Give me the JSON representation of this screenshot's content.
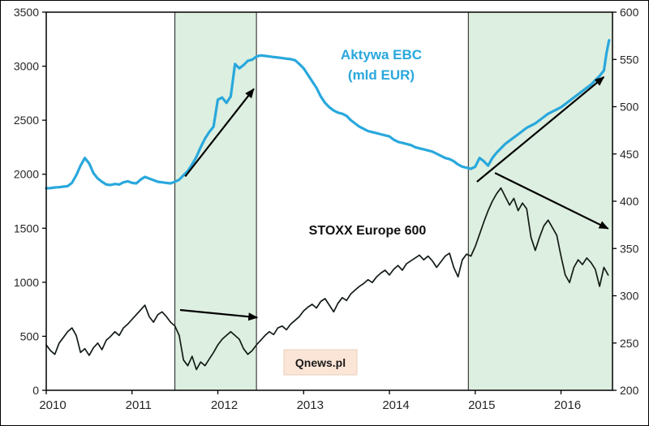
{
  "chart_data": {
    "type": "line",
    "title": "",
    "legend_position": "none",
    "grid": false,
    "plot_bg": "#ffffff",
    "x_axis": {
      "min": 2010,
      "max": 2016.6,
      "tick_years": [
        2010,
        2011,
        2012,
        2013,
        2014,
        2015,
        2016
      ],
      "tick_labels": [
        "2010",
        "2011",
        "2012",
        "2013",
        "2014",
        "2015",
        "2016"
      ]
    },
    "left_axis": {
      "min": 0,
      "max": 3500,
      "step": 500,
      "ticks": [
        "0",
        "500",
        "1000",
        "1500",
        "2000",
        "2500",
        "3000",
        "3500"
      ]
    },
    "right_axis": {
      "min": 200,
      "max": 600,
      "step": 50,
      "ticks": [
        "200",
        "250",
        "300",
        "350",
        "400",
        "450",
        "500",
        "550",
        "600"
      ]
    },
    "band_style": {
      "fill": "#ddefe0",
      "stroke": "#1a1a1a"
    },
    "bands": [
      {
        "x0": 2011.5,
        "x1": 2012.45
      },
      {
        "x0": 2014.92,
        "x1": 2016.6
      }
    ],
    "arrows": [
      {
        "axis": "left",
        "from": [
          2011.62,
          1980
        ],
        "to": [
          2012.42,
          2790
        ]
      },
      {
        "axis": "right",
        "from": [
          2011.56,
          285
        ],
        "to": [
          2012.46,
          277
        ]
      },
      {
        "axis": "left",
        "from": [
          2015.02,
          1930
        ],
        "to": [
          2016.5,
          2900
        ]
      },
      {
        "axis": "right",
        "from": [
          2015.23,
          430
        ],
        "to": [
          2016.55,
          371
        ]
      }
    ],
    "annotations": {
      "ecb_label_line1": "Aktywa EBC",
      "ecb_label_line2": "(mld EUR)",
      "stoxx_label": "STOXX Europe 600",
      "watermark": "Qnews.pl"
    },
    "series": [
      {
        "id": "ecb",
        "name": "Aktywa EBC (mld EUR)",
        "axis": "left",
        "color": "#29a8dc",
        "width": 3.2,
        "points": [
          [
            2010.0,
            1870
          ],
          [
            2010.05,
            1872
          ],
          [
            2010.1,
            1878
          ],
          [
            2010.15,
            1880
          ],
          [
            2010.2,
            1885
          ],
          [
            2010.25,
            1890
          ],
          [
            2010.3,
            1920
          ],
          [
            2010.35,
            1990
          ],
          [
            2010.4,
            2080
          ],
          [
            2010.45,
            2150
          ],
          [
            2010.5,
            2100
          ],
          [
            2010.55,
            2010
          ],
          [
            2010.6,
            1960
          ],
          [
            2010.65,
            1930
          ],
          [
            2010.7,
            1905
          ],
          [
            2010.75,
            1900
          ],
          [
            2010.8,
            1910
          ],
          [
            2010.85,
            1905
          ],
          [
            2010.9,
            1925
          ],
          [
            2010.95,
            1935
          ],
          [
            2011.0,
            1920
          ],
          [
            2011.05,
            1915
          ],
          [
            2011.1,
            1950
          ],
          [
            2011.15,
            1975
          ],
          [
            2011.2,
            1960
          ],
          [
            2011.25,
            1945
          ],
          [
            2011.3,
            1930
          ],
          [
            2011.35,
            1925
          ],
          [
            2011.4,
            1920
          ],
          [
            2011.45,
            1915
          ],
          [
            2011.5,
            1930
          ],
          [
            2011.55,
            1950
          ],
          [
            2011.6,
            1990
          ],
          [
            2011.65,
            2030
          ],
          [
            2011.7,
            2090
          ],
          [
            2011.75,
            2160
          ],
          [
            2011.8,
            2250
          ],
          [
            2011.85,
            2330
          ],
          [
            2011.9,
            2390
          ],
          [
            2011.95,
            2440
          ],
          [
            2012.0,
            2690
          ],
          [
            2012.05,
            2710
          ],
          [
            2012.1,
            2660
          ],
          [
            2012.15,
            2720
          ],
          [
            2012.2,
            3020
          ],
          [
            2012.25,
            2980
          ],
          [
            2012.3,
            3010
          ],
          [
            2012.35,
            3050
          ],
          [
            2012.4,
            3060
          ],
          [
            2012.45,
            3090
          ],
          [
            2012.5,
            3100
          ],
          [
            2012.55,
            3095
          ],
          [
            2012.6,
            3090
          ],
          [
            2012.65,
            3085
          ],
          [
            2012.7,
            3080
          ],
          [
            2012.75,
            3075
          ],
          [
            2012.8,
            3070
          ],
          [
            2012.85,
            3065
          ],
          [
            2012.9,
            3055
          ],
          [
            2012.95,
            3020
          ],
          [
            2013.0,
            2980
          ],
          [
            2013.05,
            2920
          ],
          [
            2013.1,
            2860
          ],
          [
            2013.15,
            2800
          ],
          [
            2013.2,
            2720
          ],
          [
            2013.25,
            2660
          ],
          [
            2013.3,
            2620
          ],
          [
            2013.35,
            2590
          ],
          [
            2013.4,
            2570
          ],
          [
            2013.45,
            2560
          ],
          [
            2013.5,
            2540
          ],
          [
            2013.55,
            2500
          ],
          [
            2013.6,
            2470
          ],
          [
            2013.65,
            2440
          ],
          [
            2013.7,
            2420
          ],
          [
            2013.75,
            2400
          ],
          [
            2013.8,
            2390
          ],
          [
            2013.85,
            2380
          ],
          [
            2013.9,
            2370
          ],
          [
            2013.95,
            2360
          ],
          [
            2014.0,
            2350
          ],
          [
            2014.05,
            2320
          ],
          [
            2014.1,
            2300
          ],
          [
            2014.15,
            2290
          ],
          [
            2014.2,
            2280
          ],
          [
            2014.25,
            2270
          ],
          [
            2014.3,
            2250
          ],
          [
            2014.35,
            2240
          ],
          [
            2014.4,
            2230
          ],
          [
            2014.45,
            2220
          ],
          [
            2014.5,
            2210
          ],
          [
            2014.55,
            2190
          ],
          [
            2014.6,
            2170
          ],
          [
            2014.65,
            2150
          ],
          [
            2014.7,
            2140
          ],
          [
            2014.75,
            2120
          ],
          [
            2014.8,
            2090
          ],
          [
            2014.85,
            2070
          ],
          [
            2014.9,
            2060
          ],
          [
            2014.95,
            2050
          ],
          [
            2015.0,
            2070
          ],
          [
            2015.05,
            2150
          ],
          [
            2015.1,
            2120
          ],
          [
            2015.15,
            2080
          ],
          [
            2015.2,
            2150
          ],
          [
            2015.25,
            2200
          ],
          [
            2015.3,
            2240
          ],
          [
            2015.35,
            2280
          ],
          [
            2015.4,
            2310
          ],
          [
            2015.45,
            2340
          ],
          [
            2015.5,
            2370
          ],
          [
            2015.55,
            2400
          ],
          [
            2015.6,
            2430
          ],
          [
            2015.65,
            2450
          ],
          [
            2015.7,
            2470
          ],
          [
            2015.75,
            2500
          ],
          [
            2015.8,
            2530
          ],
          [
            2015.85,
            2560
          ],
          [
            2015.9,
            2580
          ],
          [
            2015.95,
            2600
          ],
          [
            2016.0,
            2620
          ],
          [
            2016.05,
            2650
          ],
          [
            2016.1,
            2680
          ],
          [
            2016.15,
            2710
          ],
          [
            2016.2,
            2740
          ],
          [
            2016.25,
            2770
          ],
          [
            2016.3,
            2800
          ],
          [
            2016.35,
            2830
          ],
          [
            2016.4,
            2870
          ],
          [
            2016.45,
            2910
          ],
          [
            2016.5,
            2960
          ],
          [
            2016.53,
            3120
          ],
          [
            2016.56,
            3240
          ]
        ]
      },
      {
        "id": "stoxx",
        "name": "STOXX Europe 600",
        "axis": "right",
        "color": "#121b16",
        "width": 1.7,
        "points": [
          [
            2010.0,
            248
          ],
          [
            2010.05,
            242
          ],
          [
            2010.1,
            238
          ],
          [
            2010.15,
            250
          ],
          [
            2010.2,
            256
          ],
          [
            2010.25,
            262
          ],
          [
            2010.3,
            266
          ],
          [
            2010.35,
            258
          ],
          [
            2010.4,
            240
          ],
          [
            2010.45,
            244
          ],
          [
            2010.5,
            237
          ],
          [
            2010.55,
            245
          ],
          [
            2010.6,
            250
          ],
          [
            2010.65,
            243
          ],
          [
            2010.7,
            253
          ],
          [
            2010.75,
            257
          ],
          [
            2010.8,
            262
          ],
          [
            2010.85,
            258
          ],
          [
            2010.9,
            266
          ],
          [
            2010.95,
            270
          ],
          [
            2011.0,
            275
          ],
          [
            2011.05,
            280
          ],
          [
            2011.1,
            285
          ],
          [
            2011.15,
            290
          ],
          [
            2011.2,
            278
          ],
          [
            2011.25,
            272
          ],
          [
            2011.3,
            280
          ],
          [
            2011.35,
            283
          ],
          [
            2011.4,
            278
          ],
          [
            2011.45,
            272
          ],
          [
            2011.5,
            268
          ],
          [
            2011.55,
            258
          ],
          [
            2011.6,
            232
          ],
          [
            2011.65,
            226
          ],
          [
            2011.7,
            236
          ],
          [
            2011.75,
            222
          ],
          [
            2011.8,
            230
          ],
          [
            2011.85,
            226
          ],
          [
            2011.9,
            233
          ],
          [
            2011.95,
            240
          ],
          [
            2012.0,
            248
          ],
          [
            2012.05,
            254
          ],
          [
            2012.1,
            258
          ],
          [
            2012.15,
            262
          ],
          [
            2012.2,
            258
          ],
          [
            2012.25,
            254
          ],
          [
            2012.3,
            244
          ],
          [
            2012.35,
            238
          ],
          [
            2012.4,
            242
          ],
          [
            2012.45,
            248
          ],
          [
            2012.5,
            253
          ],
          [
            2012.55,
            258
          ],
          [
            2012.6,
            262
          ],
          [
            2012.65,
            259
          ],
          [
            2012.7,
            266
          ],
          [
            2012.75,
            268
          ],
          [
            2012.8,
            264
          ],
          [
            2012.85,
            270
          ],
          [
            2012.9,
            274
          ],
          [
            2012.95,
            278
          ],
          [
            2013.0,
            284
          ],
          [
            2013.05,
            288
          ],
          [
            2013.1,
            291
          ],
          [
            2013.15,
            287
          ],
          [
            2013.2,
            294
          ],
          [
            2013.25,
            297
          ],
          [
            2013.3,
            290
          ],
          [
            2013.35,
            283
          ],
          [
            2013.4,
            292
          ],
          [
            2013.45,
            298
          ],
          [
            2013.5,
            295
          ],
          [
            2013.55,
            302
          ],
          [
            2013.6,
            306
          ],
          [
            2013.65,
            310
          ],
          [
            2013.7,
            313
          ],
          [
            2013.75,
            317
          ],
          [
            2013.8,
            314
          ],
          [
            2013.85,
            320
          ],
          [
            2013.9,
            324
          ],
          [
            2013.95,
            327
          ],
          [
            2014.0,
            322
          ],
          [
            2014.05,
            328
          ],
          [
            2014.1,
            332
          ],
          [
            2014.15,
            327
          ],
          [
            2014.2,
            334
          ],
          [
            2014.25,
            337
          ],
          [
            2014.3,
            340
          ],
          [
            2014.35,
            343
          ],
          [
            2014.4,
            338
          ],
          [
            2014.45,
            342
          ],
          [
            2014.5,
            337
          ],
          [
            2014.55,
            330
          ],
          [
            2014.6,
            336
          ],
          [
            2014.65,
            342
          ],
          [
            2014.7,
            345
          ],
          [
            2014.75,
            330
          ],
          [
            2014.8,
            320
          ],
          [
            2014.85,
            338
          ],
          [
            2014.9,
            344
          ],
          [
            2014.95,
            342
          ],
          [
            2015.0,
            352
          ],
          [
            2015.05,
            365
          ],
          [
            2015.1,
            378
          ],
          [
            2015.15,
            390
          ],
          [
            2015.2,
            400
          ],
          [
            2015.25,
            408
          ],
          [
            2015.3,
            414
          ],
          [
            2015.35,
            405
          ],
          [
            2015.4,
            396
          ],
          [
            2015.45,
            403
          ],
          [
            2015.5,
            390
          ],
          [
            2015.55,
            398
          ],
          [
            2015.6,
            392
          ],
          [
            2015.65,
            362
          ],
          [
            2015.7,
            348
          ],
          [
            2015.75,
            362
          ],
          [
            2015.8,
            374
          ],
          [
            2015.85,
            380
          ],
          [
            2015.9,
            372
          ],
          [
            2015.95,
            364
          ],
          [
            2016.0,
            342
          ],
          [
            2016.05,
            322
          ],
          [
            2016.1,
            314
          ],
          [
            2016.15,
            330
          ],
          [
            2016.2,
            338
          ],
          [
            2016.25,
            333
          ],
          [
            2016.3,
            340
          ],
          [
            2016.35,
            335
          ],
          [
            2016.4,
            328
          ],
          [
            2016.45,
            310
          ],
          [
            2016.5,
            330
          ],
          [
            2016.55,
            322
          ]
        ]
      }
    ]
  }
}
